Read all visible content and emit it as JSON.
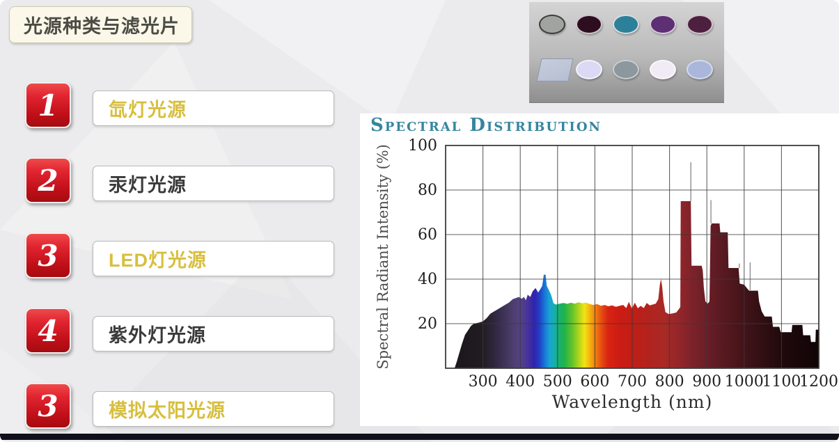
{
  "slide": {
    "title": "光源种类与滤光片",
    "items": [
      {
        "number": "1",
        "label": "氙灯光源",
        "label_color": "#d7bf3e"
      },
      {
        "number": "2",
        "label": "汞灯光源",
        "label_color": "#3a3a3a"
      },
      {
        "number": "3",
        "label": "LED灯光源",
        "label_color": "#d7bf3e"
      },
      {
        "number": "4",
        "label": "紫外灯光源",
        "label_color": "#3a3a3a"
      },
      {
        "number": "3",
        "label": "模拟太阳光源",
        "label_color": "#d7bf3e"
      }
    ],
    "accent_colors": {
      "badge_red": "#c11019",
      "gold_text": "#d7bf3e",
      "bottom_bar": "#10101c"
    }
  },
  "filters_image": {
    "background_top": "#d4d4d4",
    "background_bottom": "#8e8e8e",
    "top_row": [
      {
        "name": "gray-filter",
        "face": "#a0a49f",
        "rim": "#3c3c3c"
      },
      {
        "name": "dark-maroon-filter",
        "face": "#2c0e20",
        "rim": "#cfc3cd"
      },
      {
        "name": "teal-filter",
        "face": "#2d8099",
        "rim": "#d8dde2"
      },
      {
        "name": "purple-filter",
        "face": "#5e2f72",
        "rim": "#d8cede"
      },
      {
        "name": "plum-filter",
        "face": "#4e2040",
        "rim": "#d3c4cf"
      }
    ],
    "bottom_row": [
      {
        "name": "glass-plate",
        "face": "#b6bfd2",
        "rim": "#8e99ad",
        "shape": "plate"
      },
      {
        "name": "pale-lavender-filter",
        "face": "#dcd9f4",
        "rim": "#f5f3fc"
      },
      {
        "name": "gray-blue-filter",
        "face": "#8d979e",
        "rim": "#c9ced3"
      },
      {
        "name": "near-white-filter",
        "face": "#f0ebf5",
        "rim": "#fbf8fd"
      },
      {
        "name": "periwinkle-filter",
        "face": "#aab7db",
        "rim": "#d5dcef"
      }
    ]
  },
  "chart_data": {
    "type": "area",
    "title": "Spectral Distribution",
    "xlabel": "Wavelength (nm)",
    "ylabel": "Spectral Radiant Intensity (%)",
    "xlim": [
      200,
      1200
    ],
    "ylim": [
      0,
      100
    ],
    "x_ticks": [
      300,
      400,
      500,
      600,
      700,
      800,
      900,
      1000,
      1100,
      1200
    ],
    "y_ticks": [
      20,
      40,
      60,
      80,
      100
    ],
    "grid": true,
    "title_color": "#35869e",
    "series": [
      {
        "name": "xenon-lamp-spectrum",
        "points": [
          [
            200,
            0
          ],
          [
            224,
            0
          ],
          [
            230,
            3
          ],
          [
            237,
            7
          ],
          [
            244,
            11
          ],
          [
            252,
            15
          ],
          [
            260,
            17
          ],
          [
            268,
            19
          ],
          [
            276,
            20
          ],
          [
            290,
            20.5
          ],
          [
            300,
            21
          ],
          [
            310,
            22.5
          ],
          [
            320,
            24.5
          ],
          [
            330,
            25.5
          ],
          [
            340,
            26.5
          ],
          [
            350,
            27.5
          ],
          [
            360,
            28.5
          ],
          [
            370,
            29.5
          ],
          [
            380,
            31
          ],
          [
            388,
            31.5
          ],
          [
            396,
            32
          ],
          [
            404,
            31.2
          ],
          [
            410,
            32
          ],
          [
            415,
            30.5
          ],
          [
            420,
            33
          ],
          [
            427,
            32
          ],
          [
            433,
            34.5
          ],
          [
            441,
            36
          ],
          [
            448,
            34
          ],
          [
            454,
            35.5
          ],
          [
            459,
            37
          ],
          [
            463,
            42
          ],
          [
            468,
            42
          ],
          [
            471,
            37
          ],
          [
            476,
            35.4
          ],
          [
            482,
            33.2
          ],
          [
            486,
            31
          ],
          [
            489,
            29.2
          ],
          [
            496,
            28.6
          ],
          [
            506,
            29
          ],
          [
            516,
            29.3
          ],
          [
            526,
            28.9
          ],
          [
            536,
            29.4
          ],
          [
            546,
            29
          ],
          [
            556,
            29.6
          ],
          [
            566,
            29.2
          ],
          [
            576,
            29.5
          ],
          [
            586,
            28.8
          ],
          [
            596,
            28.4
          ],
          [
            606,
            28.8
          ],
          [
            616,
            28
          ],
          [
            626,
            28.4
          ],
          [
            636,
            27.8
          ],
          [
            646,
            28.2
          ],
          [
            656,
            27.6
          ],
          [
            666,
            28
          ],
          [
            676,
            28.4
          ],
          [
            684,
            27
          ],
          [
            691,
            29.8
          ],
          [
            699,
            26.8
          ],
          [
            707,
            29.4
          ],
          [
            715,
            26.9
          ],
          [
            723,
            28
          ],
          [
            731,
            27
          ],
          [
            739,
            29.3
          ],
          [
            747,
            28.2
          ],
          [
            755,
            28.6
          ],
          [
            763,
            29
          ],
          [
            770,
            31
          ],
          [
            774,
            37.5
          ],
          [
            777,
            40
          ],
          [
            780,
            37
          ],
          [
            784,
            30
          ],
          [
            789,
            25.2
          ],
          [
            798,
            24.3
          ],
          [
            808,
            24.6
          ],
          [
            818,
            25
          ],
          [
            825,
            26.5
          ],
          [
            829,
            27.5
          ],
          [
            830,
            75
          ],
          [
            857,
            75
          ],
          [
            859,
            46
          ],
          [
            886,
            46
          ],
          [
            889,
            44
          ],
          [
            892,
            36
          ],
          [
            896,
            30
          ],
          [
            902,
            29
          ],
          [
            907,
            30
          ],
          [
            910,
            64
          ],
          [
            913,
            65
          ],
          [
            934,
            65
          ],
          [
            936,
            61
          ],
          [
            956,
            61
          ],
          [
            958,
            45
          ],
          [
            985,
            45
          ],
          [
            988,
            38
          ],
          [
            1000,
            37.5
          ],
          [
            1012,
            35
          ],
          [
            1014,
            34.8
          ],
          [
            1037,
            34.8
          ],
          [
            1040,
            30
          ],
          [
            1047,
            25.5
          ],
          [
            1055,
            23.2
          ],
          [
            1074,
            23.2
          ],
          [
            1077,
            18.6
          ],
          [
            1094,
            18.6
          ],
          [
            1098,
            16.2
          ],
          [
            1127,
            16.2
          ],
          [
            1129,
            19.4
          ],
          [
            1156,
            19.4
          ],
          [
            1158,
            14.8
          ],
          [
            1177,
            14.8
          ],
          [
            1179,
            11.8
          ],
          [
            1191,
            11.8
          ],
          [
            1192,
            17.3
          ],
          [
            1200,
            17.3
          ]
        ]
      }
    ],
    "thin_spikes": [
      [
        857,
        75,
        92.5
      ],
      [
        911,
        65,
        75.5
      ],
      [
        987,
        45,
        47
      ],
      [
        1016,
        35,
        47.5
      ]
    ],
    "spectrum_gradient": [
      [
        200,
        "#191619"
      ],
      [
        300,
        "#201c22"
      ],
      [
        340,
        "#342b48"
      ],
      [
        375,
        "#4a3c68"
      ],
      [
        400,
        "#544284"
      ],
      [
        420,
        "#47339c"
      ],
      [
        438,
        "#3023ae"
      ],
      [
        452,
        "#2141c6"
      ],
      [
        465,
        "#1a74d4"
      ],
      [
        478,
        "#18a2d8"
      ],
      [
        490,
        "#17aeae"
      ],
      [
        502,
        "#18b077"
      ],
      [
        518,
        "#20b24a"
      ],
      [
        538,
        "#5fc22c"
      ],
      [
        558,
        "#b4d51c"
      ],
      [
        572,
        "#f2e414"
      ],
      [
        588,
        "#f5ad0e"
      ],
      [
        602,
        "#f07d10"
      ],
      [
        618,
        "#e54c12"
      ],
      [
        635,
        "#d92413"
      ],
      [
        665,
        "#cc1c13"
      ],
      [
        700,
        "#c01e16"
      ],
      [
        745,
        "#b2231e"
      ],
      [
        785,
        "#a82a26"
      ],
      [
        825,
        "#93262a"
      ],
      [
        865,
        "#7a222a"
      ],
      [
        925,
        "#5f1b23"
      ],
      [
        985,
        "#48151b"
      ],
      [
        1045,
        "#320f13"
      ],
      [
        1105,
        "#1f090b"
      ],
      [
        1200,
        "#110506"
      ]
    ]
  }
}
